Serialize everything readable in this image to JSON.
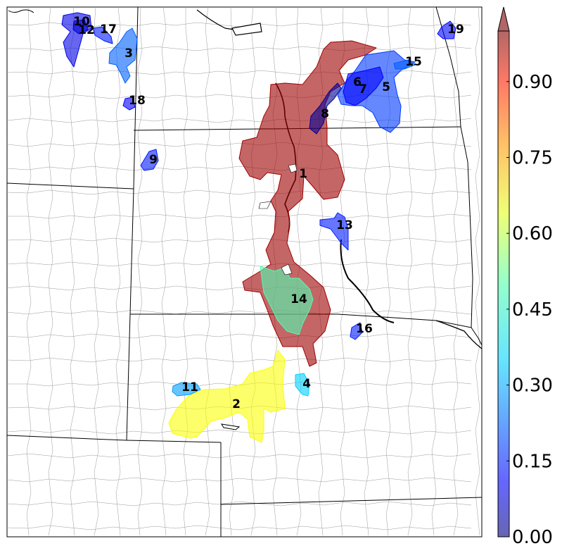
{
  "colorbar": {
    "ticks": [
      "0.00",
      "0.15",
      "0.30",
      "0.45",
      "0.60",
      "0.75",
      "0.90"
    ],
    "range": [
      0.0,
      1.0
    ],
    "extend": "max",
    "colormap": "jet",
    "alpha": 0.6
  },
  "regions": [
    {
      "label": "1",
      "value": 0.97
    },
    {
      "label": "2",
      "value": 0.62
    },
    {
      "label": "3",
      "value": 0.22
    },
    {
      "label": "4",
      "value": 0.33
    },
    {
      "label": "5",
      "value": 0.18
    },
    {
      "label": "6",
      "value": 0.12
    },
    {
      "label": "7",
      "value": 0.1
    },
    {
      "label": "8",
      "value": 0.02
    },
    {
      "label": "9",
      "value": 0.15
    },
    {
      "label": "10",
      "value": 0.1
    },
    {
      "label": "11",
      "value": 0.28
    },
    {
      "label": "12",
      "value": 0.08
    },
    {
      "label": "13",
      "value": 0.15
    },
    {
      "label": "14",
      "value": 0.45
    },
    {
      "label": "15",
      "value": 0.22
    },
    {
      "label": "16",
      "value": 0.15
    },
    {
      "label": "17",
      "value": 0.15
    },
    {
      "label": "18",
      "value": 0.12
    },
    {
      "label": "19",
      "value": 0.13
    }
  ]
}
